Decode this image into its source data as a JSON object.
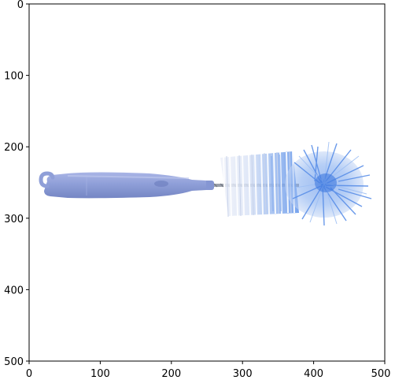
{
  "figure": {
    "x_ticks": [
      "0",
      "100",
      "200",
      "300",
      "400",
      "500"
    ],
    "y_ticks": [
      "0",
      "100",
      "200",
      "300",
      "400",
      "500"
    ],
    "xlim": [
      0,
      500
    ],
    "ylim": [
      500,
      0
    ],
    "axes_color": "#000000",
    "background": "#ffffff"
  },
  "image": {
    "subject": "bottle-cleaning-brush",
    "colors": {
      "handle": "#8f9fd8",
      "handle_shadow": "#7586c4",
      "wire": "#8a8f9a",
      "bristle_light": "#e6ebf6",
      "bristle_mid": "#b7cbf0",
      "bristle_blue": "#7aa7ee",
      "bristle_deep": "#4f86e6"
    }
  }
}
